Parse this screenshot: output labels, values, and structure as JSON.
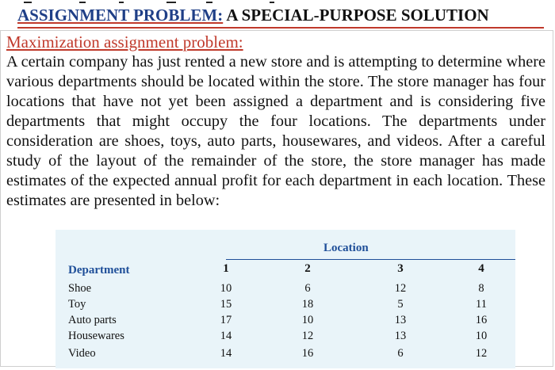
{
  "heading": {
    "colored_part": "ASSIGNMENT PROBLEM:",
    "rest_part": " A SPECIAL-PURPOSE SOLUTION"
  },
  "subtitle": "Maximization assignment problem:",
  "paragraph": "A certain company has just rented a new store and is attempting to determine where various departments should be located within the store. The store manager has four locations that have not yet been assigned a department and is considering five departments that might occupy the four locations. The departments under consideration are shoes, toys, auto parts, housewares, and videos. After a careful study of the layout of the remainder of the store, the store manager has made estimates of the expected annual profit for each department in each location. These estimates are presented in below:",
  "table": {
    "group_header": "Location",
    "row_header": "Department",
    "columns": [
      "1",
      "2",
      "3",
      "4"
    ],
    "rows": [
      {
        "department": "Shoe",
        "values": [
          "10",
          "6",
          "12",
          "8"
        ]
      },
      {
        "department": "Toy",
        "values": [
          "15",
          "18",
          "5",
          "11"
        ]
      },
      {
        "department": "Auto parts",
        "values": [
          "17",
          "10",
          "13",
          "16"
        ]
      },
      {
        "department": "Housewares",
        "values": [
          "14",
          "12",
          "13",
          "10"
        ]
      },
      {
        "department": "Video",
        "values": [
          "14",
          "16",
          "6",
          "12"
        ]
      }
    ]
  },
  "colors": {
    "heading_blue": "#1f3f87",
    "accent_red": "#c0392b",
    "table_background": "#e9f4f9",
    "table_header_blue": "#1f4f99"
  }
}
